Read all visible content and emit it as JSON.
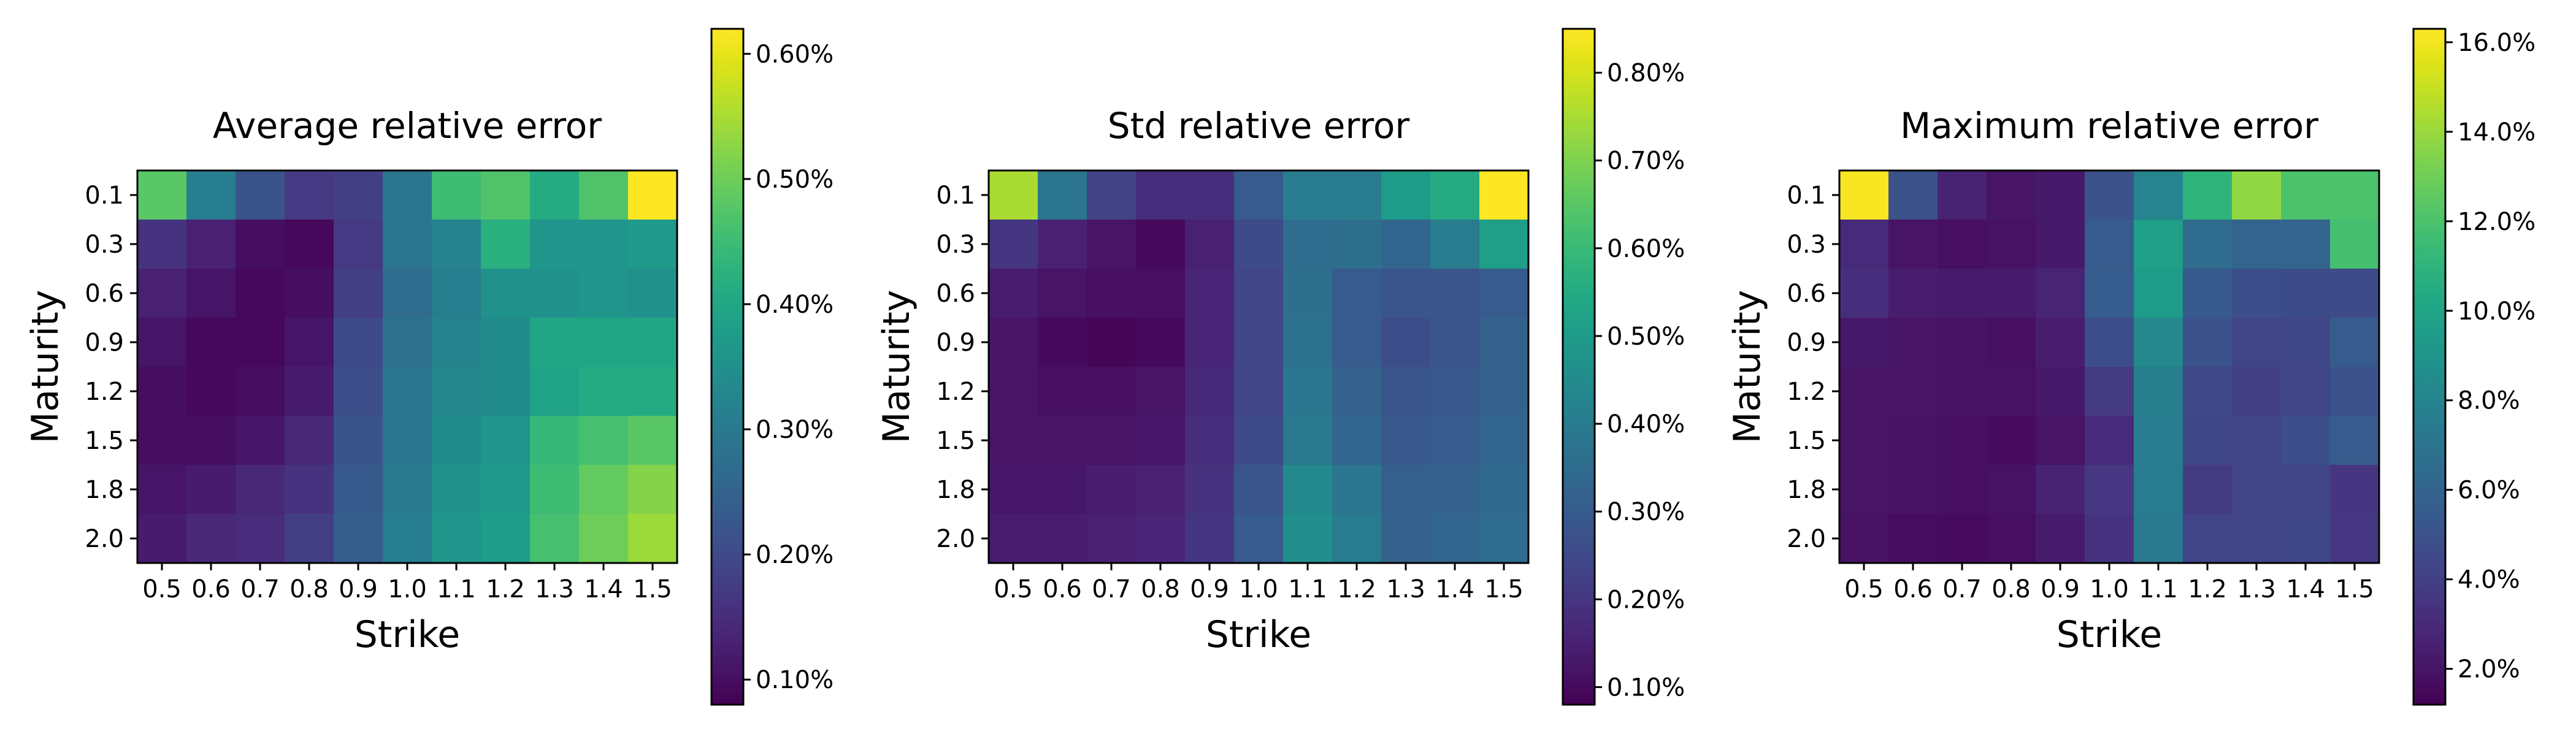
{
  "chart_data": [
    {
      "type": "heatmap",
      "title": "Average relative error",
      "xlabel": "Strike",
      "ylabel": "Maturity",
      "x": [
        "0.5",
        "0.6",
        "0.7",
        "0.8",
        "0.9",
        "1.0",
        "1.1",
        "1.2",
        "1.3",
        "1.4",
        "1.5"
      ],
      "y": [
        "0.1",
        "0.3",
        "0.6",
        "0.9",
        "1.2",
        "1.5",
        "1.8",
        "2.0"
      ],
      "colormap": "viridis",
      "vmin": 0.08,
      "vmax": 0.62,
      "colorbar_ticks": [
        0.1,
        0.2,
        0.3,
        0.4,
        0.5,
        0.6
      ],
      "colorbar_labels": [
        "0.10%",
        "0.20%",
        "0.30%",
        "0.40%",
        "0.50%",
        "0.60%"
      ],
      "values": [
        [
          0.48,
          0.31,
          0.22,
          0.17,
          0.18,
          0.29,
          0.45,
          0.47,
          0.41,
          0.47,
          0.62
        ],
        [
          0.16,
          0.13,
          0.1,
          0.09,
          0.17,
          0.29,
          0.32,
          0.42,
          0.36,
          0.36,
          0.37
        ],
        [
          0.13,
          0.11,
          0.09,
          0.1,
          0.18,
          0.27,
          0.31,
          0.35,
          0.35,
          0.36,
          0.35
        ],
        [
          0.11,
          0.09,
          0.09,
          0.11,
          0.2,
          0.28,
          0.32,
          0.34,
          0.4,
          0.4,
          0.4
        ],
        [
          0.1,
          0.09,
          0.1,
          0.12,
          0.21,
          0.29,
          0.33,
          0.34,
          0.39,
          0.41,
          0.41
        ],
        [
          0.1,
          0.1,
          0.11,
          0.14,
          0.22,
          0.29,
          0.34,
          0.36,
          0.44,
          0.46,
          0.48
        ],
        [
          0.11,
          0.12,
          0.14,
          0.16,
          0.23,
          0.3,
          0.35,
          0.37,
          0.45,
          0.49,
          0.52
        ],
        [
          0.12,
          0.14,
          0.15,
          0.18,
          0.24,
          0.31,
          0.36,
          0.38,
          0.46,
          0.5,
          0.54
        ]
      ]
    },
    {
      "type": "heatmap",
      "title": "Std relative error",
      "xlabel": "Strike",
      "ylabel": "Maturity",
      "x": [
        "0.5",
        "0.6",
        "0.7",
        "0.8",
        "0.9",
        "1.0",
        "1.1",
        "1.2",
        "1.3",
        "1.4",
        "1.5"
      ],
      "y": [
        "0.1",
        "0.3",
        "0.6",
        "0.9",
        "1.2",
        "1.5",
        "1.8",
        "2.0"
      ],
      "colormap": "viridis",
      "vmin": 0.08,
      "vmax": 0.85,
      "colorbar_ticks": [
        0.1,
        0.2,
        0.3,
        0.4,
        0.5,
        0.6,
        0.7,
        0.8
      ],
      "colorbar_labels": [
        "0.10%",
        "0.20%",
        "0.30%",
        "0.40%",
        "0.50%",
        "0.60%",
        "0.70%",
        "0.80%"
      ],
      "values": [
        [
          0.75,
          0.38,
          0.23,
          0.18,
          0.18,
          0.3,
          0.4,
          0.4,
          0.5,
          0.55,
          0.85
        ],
        [
          0.2,
          0.15,
          0.12,
          0.1,
          0.15,
          0.25,
          0.35,
          0.36,
          0.33,
          0.4,
          0.51
        ],
        [
          0.14,
          0.12,
          0.11,
          0.11,
          0.16,
          0.24,
          0.36,
          0.3,
          0.28,
          0.28,
          0.3
        ],
        [
          0.12,
          0.1,
          0.09,
          0.1,
          0.16,
          0.24,
          0.37,
          0.3,
          0.26,
          0.28,
          0.32
        ],
        [
          0.12,
          0.11,
          0.11,
          0.12,
          0.17,
          0.24,
          0.38,
          0.32,
          0.28,
          0.29,
          0.32
        ],
        [
          0.12,
          0.12,
          0.12,
          0.13,
          0.18,
          0.25,
          0.39,
          0.33,
          0.29,
          0.3,
          0.33
        ],
        [
          0.13,
          0.13,
          0.14,
          0.15,
          0.19,
          0.28,
          0.44,
          0.38,
          0.31,
          0.32,
          0.34
        ],
        [
          0.14,
          0.14,
          0.15,
          0.16,
          0.2,
          0.3,
          0.46,
          0.4,
          0.32,
          0.33,
          0.35
        ]
      ]
    },
    {
      "type": "heatmap",
      "title": "Maximum relative error",
      "xlabel": "Strike",
      "ylabel": "Maturity",
      "x": [
        "0.5",
        "0.6",
        "0.7",
        "0.8",
        "0.9",
        "1.0",
        "1.1",
        "1.2",
        "1.3",
        "1.4",
        "1.5"
      ],
      "y": [
        "0.1",
        "0.3",
        "0.6",
        "0.9",
        "1.2",
        "1.5",
        "1.8",
        "2.0"
      ],
      "colormap": "viridis",
      "vmin": 1.2,
      "vmax": 16.3,
      "colorbar_ticks": [
        2,
        4,
        6,
        8,
        10,
        12,
        14,
        16
      ],
      "colorbar_labels": [
        "2.0%",
        "4.0%",
        "6.0%",
        "8.0%",
        "10.0%",
        "12.0%",
        "14.0%",
        "16.0%"
      ],
      "values": [
        [
          16.2,
          5.0,
          2.6,
          2.0,
          2.2,
          5.0,
          8.0,
          11.0,
          13.8,
          12.0,
          12.0
        ],
        [
          3.0,
          2.0,
          1.8,
          1.9,
          2.2,
          5.5,
          9.6,
          6.5,
          6.0,
          6.0,
          11.8
        ],
        [
          3.2,
          2.4,
          2.3,
          2.3,
          2.7,
          5.6,
          9.5,
          5.4,
          4.8,
          4.6,
          4.6
        ],
        [
          2.2,
          2.0,
          1.9,
          1.8,
          2.4,
          4.7,
          8.2,
          5.0,
          4.3,
          4.4,
          5.5
        ],
        [
          2.0,
          2.0,
          1.9,
          1.9,
          2.2,
          3.8,
          7.7,
          4.5,
          4.0,
          4.3,
          5.0
        ],
        [
          2.0,
          1.9,
          1.8,
          1.6,
          2.0,
          3.0,
          7.6,
          4.4,
          4.2,
          4.8,
          5.5
        ],
        [
          2.0,
          1.9,
          1.8,
          1.9,
          2.6,
          3.6,
          7.4,
          3.8,
          4.2,
          4.3,
          3.5
        ],
        [
          1.9,
          1.7,
          1.6,
          1.8,
          2.3,
          3.4,
          7.3,
          4.2,
          4.3,
          4.4,
          3.6
        ]
      ]
    }
  ]
}
